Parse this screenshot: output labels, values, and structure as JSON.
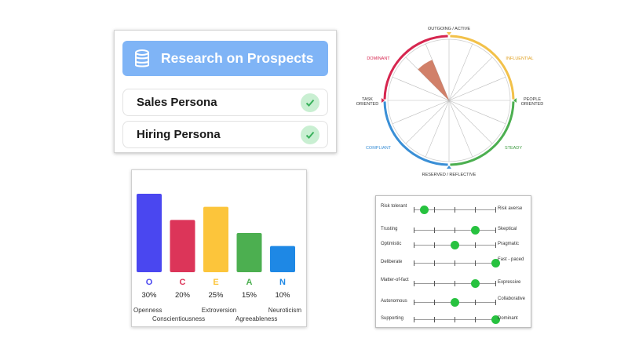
{
  "research": {
    "title": "Research on Prospects",
    "personas": [
      {
        "label": "Sales Persona",
        "status": "check-icon"
      },
      {
        "label": "Hiring Persona",
        "status": "check-icon"
      }
    ],
    "accent": "#7fb4f6"
  },
  "disc": {
    "top": "OUTGOING / ACTIVE",
    "bottom": "RESERVED / REFLECTIVE",
    "left": "TASK\nORIENTED",
    "right": "PEOPLE\nORIENTED",
    "quadrants": {
      "dominant": "DOMINANT",
      "influential": "INFLUENTIAL",
      "steady": "STEADY",
      "compliant": "COMPLIANT"
    },
    "colors": {
      "dominant": "#d6264f",
      "influential": "#f2c14a",
      "steady": "#4caf50",
      "compliant": "#3a8fd6"
    },
    "highlight": "#c96a4f"
  },
  "ocean": {
    "chart_data": {
      "type": "bar",
      "categories": [
        "O",
        "C",
        "E",
        "A",
        "N"
      ],
      "values": [
        30,
        20,
        25,
        15,
        10
      ],
      "value_labels": [
        "30%",
        "20%",
        "25%",
        "15%",
        "10%"
      ],
      "names": [
        "Openness",
        "Conscientiousness",
        "Extroversion",
        "Agreeableness",
        "Neuroticism"
      ],
      "colors": [
        "#4a47f0",
        "#dc3559",
        "#fcc53b",
        "#4caf50",
        "#1e88e5"
      ],
      "ylim": [
        0,
        30
      ]
    }
  },
  "traits": {
    "rows": [
      {
        "left": "Risk tolerant",
        "right": "Risk averse",
        "level": 0.125
      },
      {
        "left": "Trusting",
        "right": "Skeptical",
        "level": 0.75
      },
      {
        "left": "Optimistic",
        "right": "Pragmatic",
        "level": 0.5
      },
      {
        "left": "Deliberate",
        "right": "Fast - paced",
        "level": 1.0
      },
      {
        "left": "Matter-of-fact",
        "right": "Expressive",
        "level": 0.75
      },
      {
        "left": "Autonomous",
        "right": "Collaborative",
        "level": 0.5
      },
      {
        "left": "Supporting",
        "right": "Dominant",
        "level": 1.0
      }
    ],
    "knob_color": "#27c23f"
  }
}
